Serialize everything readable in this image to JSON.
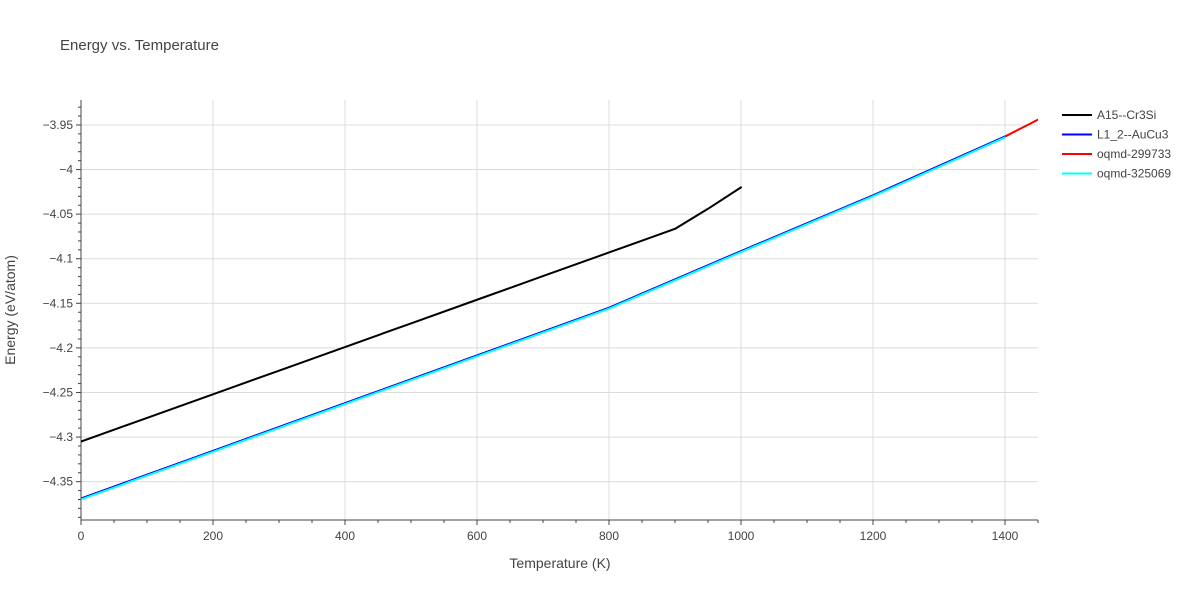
{
  "chart_data": {
    "type": "line",
    "title": "Energy vs. Temperature",
    "xlabel": "Temperature (K)",
    "ylabel": "Energy (eV/atom)",
    "xlim": [
      0,
      1450
    ],
    "ylim": [
      -4.393,
      -3.922
    ],
    "x_ticks": [
      0,
      200,
      400,
      600,
      800,
      1000,
      1200,
      1400
    ],
    "y_ticks": [
      -4.35,
      -4.3,
      -4.25,
      -4.2,
      -4.15,
      -4.1,
      -4.05,
      -4.0,
      -3.95
    ],
    "x_tick_labels": [
      "0",
      "200",
      "400",
      "600",
      "800",
      "1000",
      "1200",
      "1400"
    ],
    "y_tick_labels": [
      "−4.35",
      "−4.3",
      "−4.25",
      "−4.2",
      "−4.15",
      "−4.1",
      "−4.05",
      "−4",
      "−3.95"
    ],
    "grid": true,
    "legend_position": "top-right",
    "series": [
      {
        "name": "A15--Cr3Si",
        "color": "#000000",
        "x": [
          0,
          100,
          200,
          300,
          400,
          500,
          600,
          700,
          800,
          900,
          950,
          1000
        ],
        "y": [
          -4.305,
          -4.2785,
          -4.252,
          -4.2255,
          -4.199,
          -4.1725,
          -4.146,
          -4.1195,
          -4.093,
          -4.0665,
          -4.044,
          -4.02
        ]
      },
      {
        "name": "L1_2--AuCu3",
        "color": "#0000ff",
        "x": [
          0,
          200,
          400,
          600,
          800,
          1000,
          1200,
          1400
        ],
        "y": [
          -4.369,
          -4.3155,
          -4.262,
          -4.2085,
          -4.155,
          -4.0915,
          -4.029,
          -3.963
        ]
      },
      {
        "name": "oqmd-299733",
        "color": "#ff0000",
        "x": [
          0,
          200,
          400,
          600,
          800,
          1000,
          1200,
          1400,
          1450
        ],
        "y": [
          -4.369,
          -4.3155,
          -4.262,
          -4.2085,
          -4.155,
          -4.0915,
          -4.029,
          -3.963,
          -3.944
        ]
      },
      {
        "name": "oqmd-325069",
        "color": "#00ffff",
        "x": [
          0,
          200,
          400,
          600,
          800,
          1000,
          1200,
          1400
        ],
        "y": [
          -4.37,
          -4.3165,
          -4.263,
          -4.2095,
          -4.156,
          -4.0925,
          -4.03,
          -3.964
        ]
      }
    ]
  }
}
